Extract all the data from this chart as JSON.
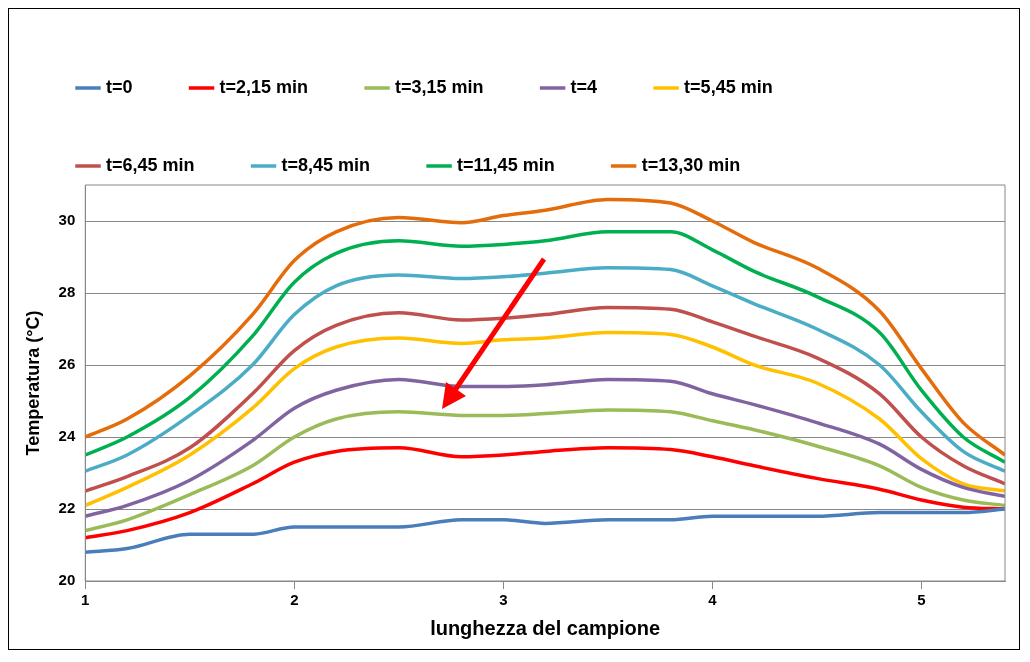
{
  "chart_data": {
    "type": "line",
    "xlabel": "lunghezza del campione",
    "ylabel": "Temperatura (°C)",
    "x": [
      1,
      1.2,
      1.5,
      1.8,
      2,
      2.2,
      2.5,
      2.8,
      3,
      3.2,
      3.5,
      3.8,
      4,
      4.2,
      4.5,
      4.8,
      5,
      5.2,
      5.4
    ],
    "xlim": [
      1,
      5.4
    ],
    "xticks": [
      1,
      2,
      3,
      4,
      5
    ],
    "ylim": [
      20,
      31
    ],
    "yticks": [
      20,
      22,
      24,
      26,
      28,
      30
    ],
    "grid": "y",
    "legend": "top",
    "marker": "none",
    "line_style": "solid",
    "series": [
      {
        "name": "t=0",
        "color": "#4a7ebb",
        "values": [
          20.8,
          20.9,
          21.3,
          21.3,
          21.5,
          21.5,
          21.5,
          21.7,
          21.7,
          21.6,
          21.7,
          21.7,
          21.8,
          21.8,
          21.8,
          21.9,
          21.9,
          21.9,
          22.0
        ]
      },
      {
        "name": "t=2,15 min",
        "color": "#ff0000",
        "values": [
          21.2,
          21.4,
          21.9,
          22.7,
          23.3,
          23.6,
          23.7,
          23.45,
          23.5,
          23.6,
          23.7,
          23.65,
          23.45,
          23.2,
          22.85,
          22.55,
          22.25,
          22.05,
          22.0
        ]
      },
      {
        "name": "t=3,15 min",
        "color": "#9bbb59",
        "values": [
          21.4,
          21.7,
          22.4,
          23.2,
          24.0,
          24.5,
          24.7,
          24.6,
          24.6,
          24.65,
          24.75,
          24.7,
          24.45,
          24.2,
          23.75,
          23.2,
          22.6,
          22.25,
          22.1
        ]
      },
      {
        "name": "t=4",
        "color": "#8064a2",
        "values": [
          21.8,
          22.1,
          22.8,
          23.9,
          24.8,
          25.3,
          25.6,
          25.4,
          25.4,
          25.45,
          25.6,
          25.55,
          25.2,
          24.9,
          24.4,
          23.8,
          23.1,
          22.6,
          22.35
        ]
      },
      {
        "name": "t=5,45 min",
        "color": "#ffc000",
        "values": [
          22.1,
          22.6,
          23.5,
          24.8,
          25.9,
          26.5,
          26.75,
          26.6,
          26.7,
          26.75,
          26.9,
          26.85,
          26.5,
          26.0,
          25.5,
          24.5,
          23.4,
          22.7,
          22.5
        ]
      },
      {
        "name": "t=6,45 min",
        "color": "#c0504d",
        "values": [
          22.5,
          22.9,
          23.7,
          25.2,
          26.4,
          27.1,
          27.45,
          27.25,
          27.3,
          27.4,
          27.6,
          27.55,
          27.2,
          26.8,
          26.2,
          25.2,
          24.0,
          23.2,
          22.7
        ]
      },
      {
        "name": "t=8,45 min",
        "color": "#4bacc6",
        "values": [
          23.05,
          23.5,
          24.6,
          26.0,
          27.4,
          28.2,
          28.5,
          28.4,
          28.45,
          28.55,
          28.7,
          28.65,
          28.2,
          27.7,
          27.0,
          26.0,
          24.7,
          23.6,
          23.05
        ]
      },
      {
        "name": "t=11,45 min",
        "color": "#00b050",
        "values": [
          23.5,
          24.0,
          25.1,
          26.8,
          28.3,
          29.1,
          29.45,
          29.3,
          29.35,
          29.45,
          29.7,
          29.7,
          29.2,
          28.6,
          27.9,
          26.9,
          25.3,
          24.0,
          23.3
        ]
      },
      {
        "name": "t=13,30 min",
        "color": "#e46c0a",
        "values": [
          24.0,
          24.5,
          25.7,
          27.4,
          28.9,
          29.7,
          30.1,
          29.95,
          30.15,
          30.3,
          30.6,
          30.5,
          30.0,
          29.4,
          28.7,
          27.5,
          25.9,
          24.4,
          23.5
        ]
      }
    ]
  }
}
